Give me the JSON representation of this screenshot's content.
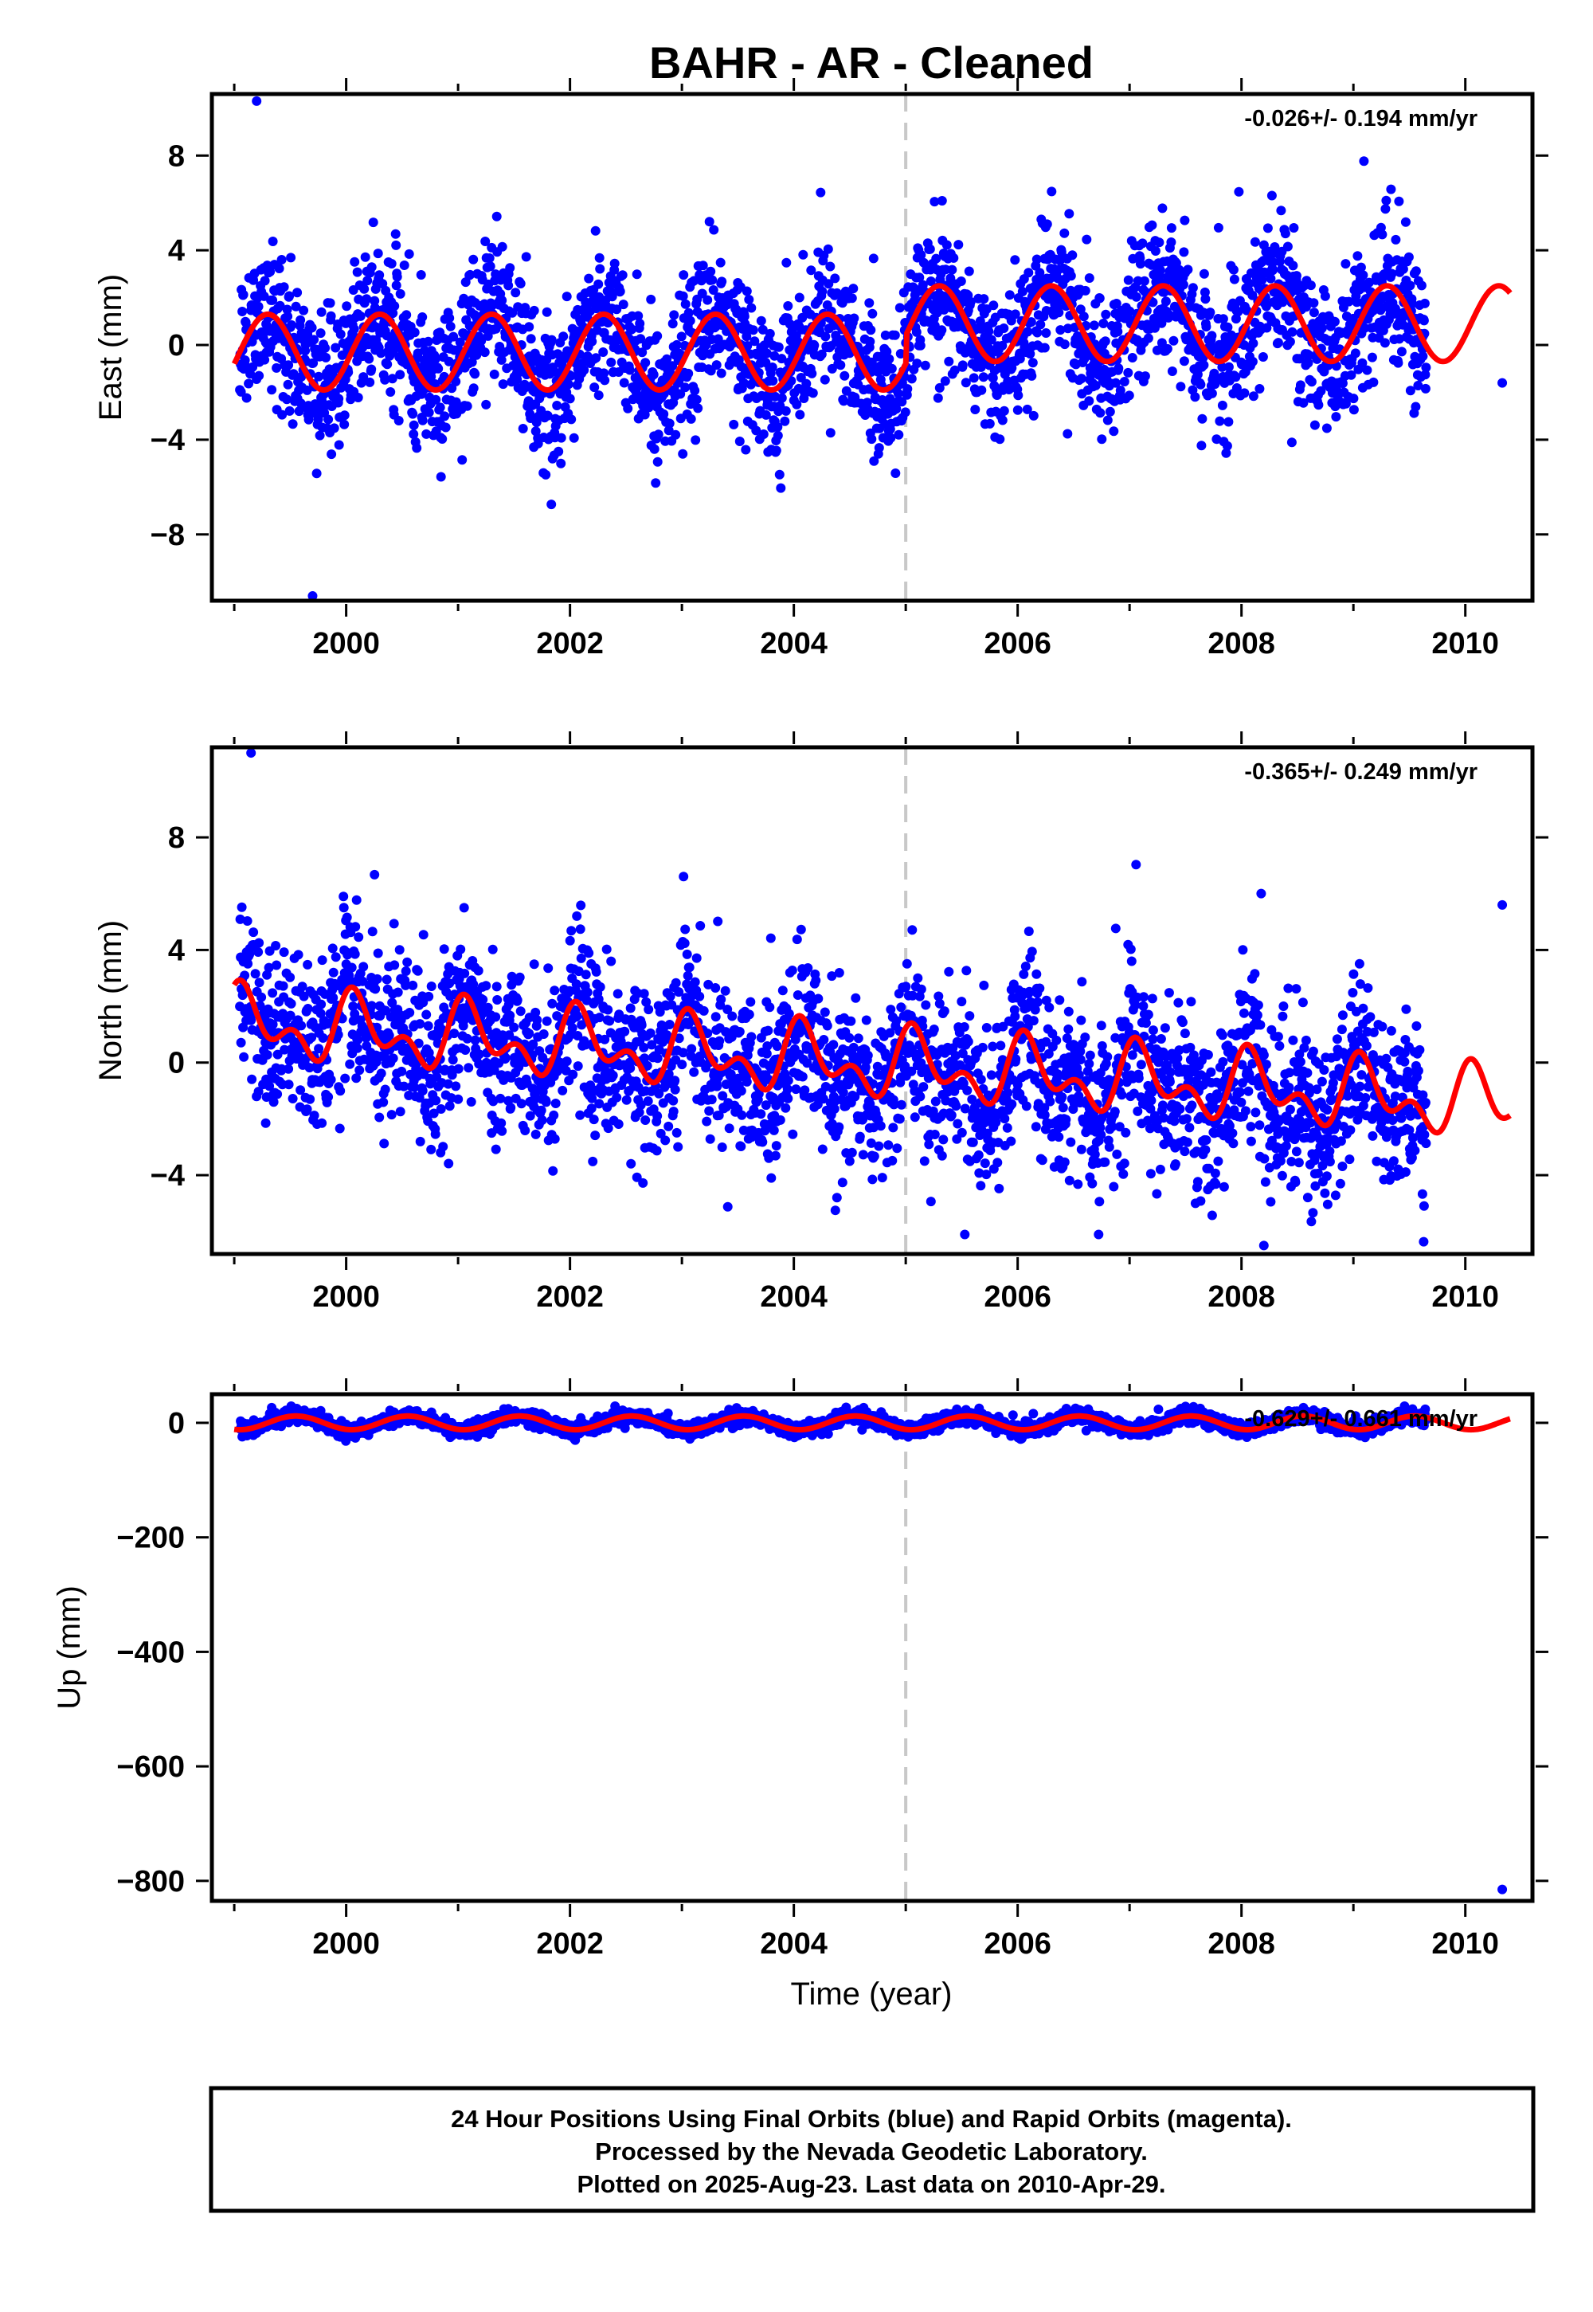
{
  "chart_data": {
    "type": "scatter",
    "title": "BAHR  - AR - Cleaned",
    "xlabel": "Time (year)",
    "xlim": [
      1998.8,
      2010.6
    ],
    "x_ticks": [
      "2000",
      "2002",
      "2004",
      "2006",
      "2008",
      "2010"
    ],
    "x_tick_values": [
      2000,
      2002,
      2004,
      2006,
      2008,
      2010
    ],
    "break_line_year": 2005.0,
    "series_colors": {
      "points": "#0000ff",
      "model": "#ff0000",
      "break_line": "#c8c8c8"
    },
    "panels": [
      {
        "ylabel": "East (mm)",
        "ylim": [
          -10.8,
          10.6
        ],
        "y_ticks": [
          "8",
          "4",
          "0",
          "−4",
          "−8"
        ],
        "y_tick_values": [
          8,
          4,
          0,
          -4,
          -8
        ],
        "rate_text": "-0.026+/- 0.194 mm/yr",
        "points_summary": {
          "x_start": 1999.05,
          "x_end": 2009.65,
          "typical_range": [
            -6,
            6
          ],
          "extremes": [
            {
              "x": 1999.2,
              "y": 10.3
            },
            {
              "x": 1999.7,
              "y": -10.6
            },
            {
              "x": 2010.33,
              "y": -1.6
            }
          ]
        },
        "model": {
          "offsets": [
            {
              "x_from": 1999.0,
              "x_to": 2005.0,
              "mean": -0.3
            },
            {
              "x_from": 2005.0,
              "x_to": 2010.4,
              "mean": 0.9
            }
          ],
          "amplitude": 1.6,
          "peak_phase_year_fraction": 0.3,
          "semiannual_amplitude": 0.0
        }
      },
      {
        "ylabel": "North (mm)",
        "ylim": [
          -6.8,
          11.2
        ],
        "y_ticks": [
          "8",
          "4",
          "0",
          "−4"
        ],
        "y_tick_values": [
          8,
          4,
          0,
          -4
        ],
        "rate_text": "-0.365+/- 0.249 mm/yr",
        "points_summary": {
          "x_start": 1999.05,
          "x_end": 2009.65,
          "typical_range": [
            -5,
            7
          ],
          "extremes": [
            {
              "x": 1999.15,
              "y": 11.0
            },
            {
              "x": 2008.2,
              "y": -6.5
            },
            {
              "x": 2010.33,
              "y": 5.6
            }
          ]
        },
        "model": {
          "trend_start": 1.4,
          "trend_end": -1.5,
          "amplitude": 0.9,
          "peak_phase_year_fraction": 0.1,
          "semiannual_amplitude": 0.7
        }
      },
      {
        "ylabel": "Up (mm)",
        "ylim": [
          -835,
          50
        ],
        "y_ticks": [
          "0",
          "−200",
          "−400",
          "−600",
          "−800"
        ],
        "y_tick_values": [
          0,
          -200,
          -400,
          -600,
          -800
        ],
        "rate_text": "-0.629+/- 0.661 mm/yr",
        "points_summary": {
          "x_start": 1999.05,
          "x_end": 2009.65,
          "typical_range": [
            -25,
            25
          ],
          "extremes": [
            {
              "x": 2010.33,
              "y": -815
            }
          ]
        },
        "model": {
          "trend_start": 0,
          "trend_end": 0,
          "amplitude": 12,
          "peak_phase_year_fraction": 0.55,
          "semiannual_amplitude": 0
        }
      }
    ],
    "footer": [
      "24 Hour Positions Using Final Orbits (blue) and Rapid Orbits (magenta).",
      "Processed by the Nevada Geodetic Laboratory.",
      "Plotted on 2025-Aug-23. Last data on 2010-Apr-29."
    ]
  }
}
